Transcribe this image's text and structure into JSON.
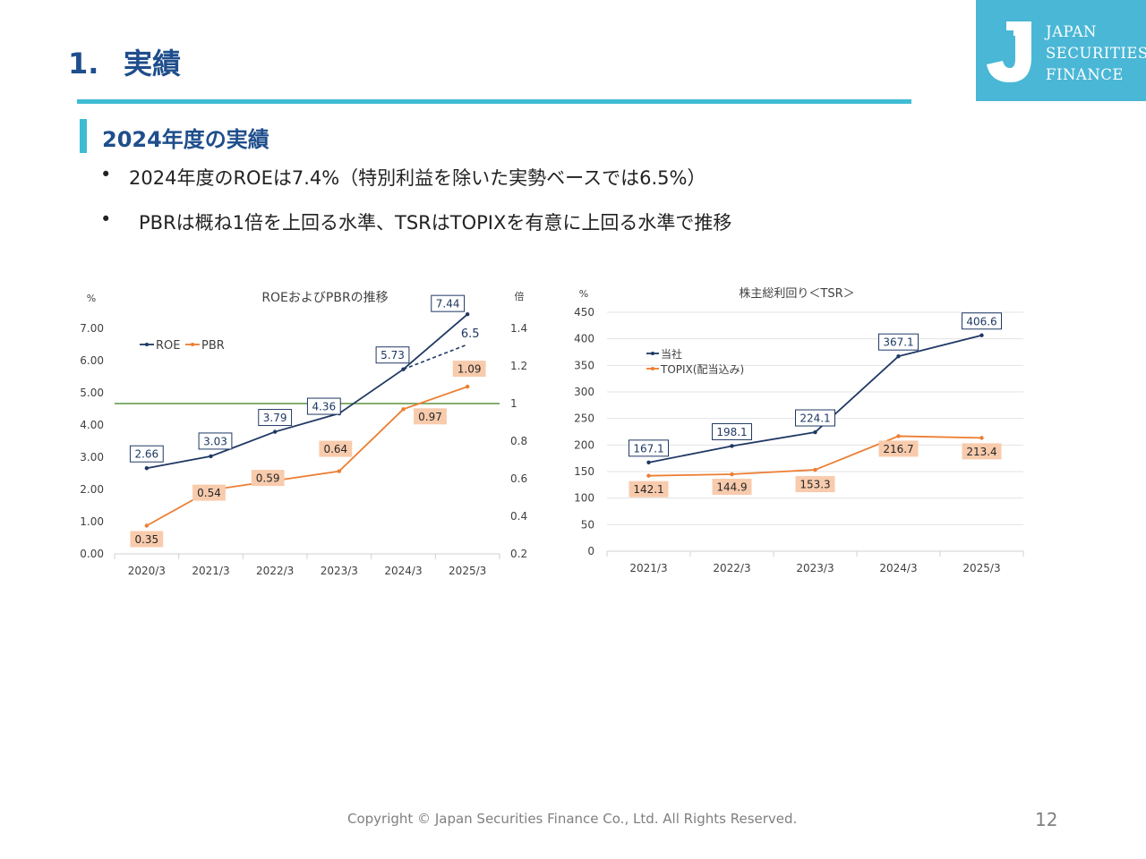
{
  "header": {
    "section_number": "1.",
    "title": "実績"
  },
  "logo": {
    "line1": "JAPAN",
    "line2": "SECURITIES",
    "line3": "FINANCE"
  },
  "section": {
    "title": "2024年度の実績"
  },
  "bullets": [
    {
      "marker": "•",
      "text": "2024年度のROEは7.4%（特別利益を除いた実勢ベースでは6.5%）"
    },
    {
      "marker": "•",
      "text": "PBRは概ね1倍を上回る水準、TSRはTOPIXを有意に上回る水準で推移"
    }
  ],
  "colors": {
    "navy": "#1f3864",
    "orange": "#ed7d31",
    "reference_line": "#5a9440",
    "accent": "#3fbcd4",
    "title": "#1f4e8c",
    "logo_bg": "#4ab7d6"
  },
  "chart_data": [
    {
      "type": "line",
      "title": "ROEおよびPBRの推移",
      "y_unit_left": "%",
      "y_unit_right": "倍",
      "categories": [
        "2020/3",
        "2021/3",
        "2022/3",
        "2023/3",
        "2024/3",
        "2025/3"
      ],
      "ylim_left": [
        0,
        7
      ],
      "yticks_left": [
        "0.00",
        "1.00",
        "2.00",
        "3.00",
        "4.00",
        "5.00",
        "6.00",
        "7.00"
      ],
      "ylim_right": [
        0.2,
        1.4
      ],
      "yticks_right": [
        "0.2",
        "0.4",
        "0.6",
        "0.8",
        "1",
        "1.2",
        "1.4"
      ],
      "legend_position": "top-left",
      "grid": false,
      "series": [
        {
          "name": "ROE",
          "axis": "left",
          "color": "#1f3864",
          "values": [
            2.66,
            3.03,
            3.79,
            4.36,
            5.73,
            7.44
          ],
          "labels": [
            "2.66",
            "3.03",
            "3.79",
            "4.36",
            "5.73",
            "7.44"
          ]
        },
        {
          "name": "PBR",
          "axis": "right",
          "color": "#ed7d31",
          "values": [
            0.35,
            0.54,
            0.59,
            0.64,
            0.97,
            1.09
          ],
          "labels": [
            "0.35",
            "0.54",
            "0.59",
            "0.64",
            "0.97",
            "1.09"
          ]
        }
      ],
      "annotations": [
        {
          "type": "dashed_line",
          "from_category": "2024/3",
          "from_value": 5.73,
          "to_category": "2025/3",
          "to_value": 6.5,
          "label": "6.5",
          "color": "#1f3864"
        },
        {
          "type": "reference_line",
          "axis": "right",
          "value": 1,
          "color": "#5a9440"
        }
      ]
    },
    {
      "type": "line",
      "title": "株主総利回り＜TSR＞",
      "y_unit_left": "%",
      "categories": [
        "2021/3",
        "2022/3",
        "2023/3",
        "2024/3",
        "2025/3"
      ],
      "ylim": [
        0,
        450
      ],
      "yticks": [
        "0",
        "50",
        "100",
        "150",
        "200",
        "250",
        "300",
        "350",
        "400",
        "450"
      ],
      "legend_position": "top-left",
      "grid": true,
      "series": [
        {
          "name": "当社",
          "color": "#1f3864",
          "values": [
            167.1,
            198.1,
            224.1,
            367.1,
            406.6
          ],
          "labels": [
            "167.1",
            "198.1",
            "224.1",
            "367.1",
            "406.6"
          ]
        },
        {
          "name": "TOPIX(配当込み)",
          "color": "#ed7d31",
          "values": [
            142.1,
            144.9,
            153.3,
            216.7,
            213.4
          ],
          "labels": [
            "142.1",
            "144.9",
            "153.3",
            "216.7",
            "213.4"
          ]
        }
      ]
    }
  ],
  "footer": {
    "copyright": "Copyright © Japan Securities Finance Co., Ltd. All Rights Reserved.",
    "page_number": "12"
  }
}
